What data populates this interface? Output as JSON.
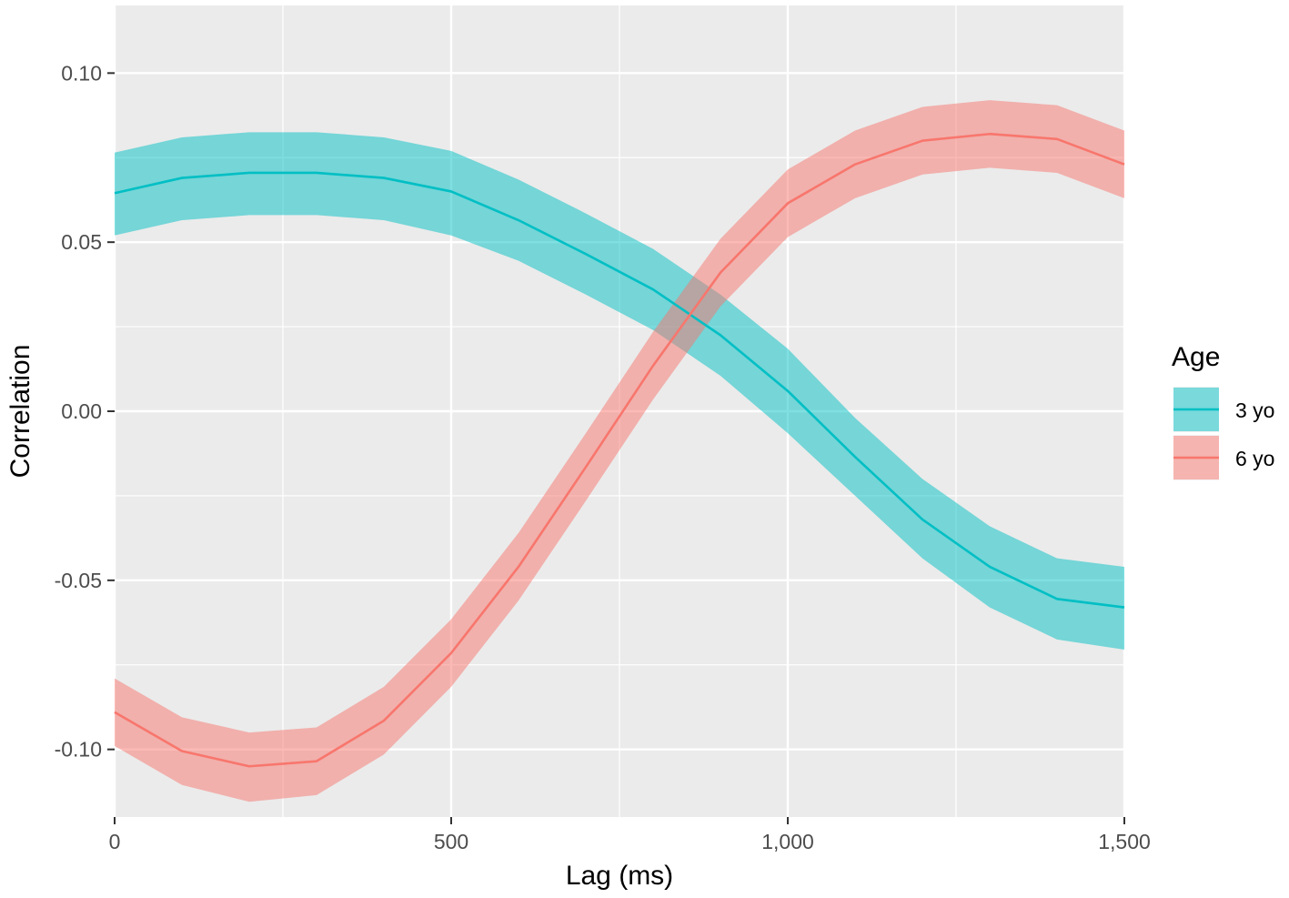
{
  "chart_data": {
    "type": "line",
    "title": "",
    "xlabel": "Lag (ms)",
    "ylabel": "Correlation",
    "xlim": [
      0,
      1500
    ],
    "ylim": [
      -0.12,
      0.12
    ],
    "x_ticks": [
      0,
      500,
      1000,
      1500
    ],
    "x_tick_labels": [
      "0",
      "500",
      "1,000",
      "1,500"
    ],
    "y_ticks": [
      -0.1,
      -0.05,
      0.0,
      0.05,
      0.1
    ],
    "y_tick_labels": [
      "-0.10",
      "-0.05",
      "0.00",
      "0.05",
      "0.10"
    ],
    "grid": true,
    "legend": {
      "title": "Age",
      "position": "right"
    },
    "x": [
      0,
      100,
      200,
      300,
      400,
      500,
      600,
      700,
      800,
      900,
      1000,
      1100,
      1200,
      1300,
      1400,
      1500
    ],
    "series": [
      {
        "name": "3 yo",
        "color": "#00BFC4",
        "band_color": "#5ED0D6",
        "y": [
          0.0645,
          0.069,
          0.0705,
          0.0705,
          0.069,
          0.065,
          0.0565,
          0.0465,
          0.036,
          0.0225,
          0.006,
          -0.0135,
          -0.032,
          -0.046,
          -0.0555,
          -0.058
        ],
        "lower": [
          0.052,
          0.0565,
          0.058,
          0.058,
          0.0565,
          0.052,
          0.0445,
          0.0345,
          0.024,
          0.0105,
          -0.0065,
          -0.025,
          -0.0435,
          -0.058,
          -0.0675,
          -0.0705
        ],
        "upper": [
          0.0765,
          0.081,
          0.0825,
          0.0825,
          0.081,
          0.077,
          0.0685,
          0.0585,
          0.048,
          0.0345,
          0.0185,
          -0.002,
          -0.02,
          -0.034,
          -0.0435,
          -0.046
        ]
      },
      {
        "name": "6 yo",
        "color": "#F8766D",
        "band_color": "#F5A6A2",
        "y": [
          -0.089,
          -0.1005,
          -0.105,
          -0.1035,
          -0.0915,
          -0.0715,
          -0.046,
          -0.0165,
          0.0135,
          0.041,
          0.0615,
          0.073,
          0.08,
          0.082,
          0.0805,
          0.073
        ],
        "lower": [
          -0.099,
          -0.1105,
          -0.1155,
          -0.1135,
          -0.1015,
          -0.0815,
          -0.056,
          -0.0265,
          0.0035,
          0.031,
          0.0515,
          0.063,
          0.07,
          0.072,
          0.0705,
          0.063
        ],
        "upper": [
          -0.079,
          -0.0905,
          -0.095,
          -0.0935,
          -0.0815,
          -0.0615,
          -0.036,
          -0.0065,
          0.0235,
          0.051,
          0.0715,
          0.083,
          0.09,
          0.092,
          0.0905,
          0.083
        ]
      }
    ]
  }
}
